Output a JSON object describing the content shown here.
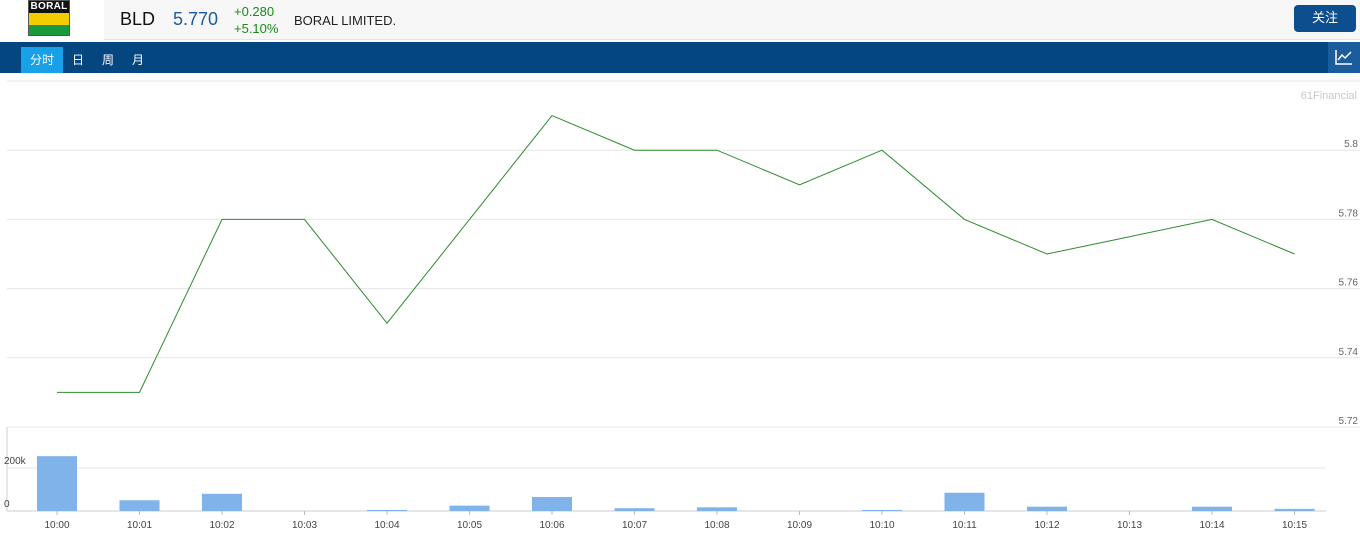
{
  "header": {
    "logo_text": "BORAL",
    "symbol": "BLD",
    "price": "5.770",
    "change": "+0.280",
    "change_pct": "+5.10%",
    "company": "BORAL LIMITED.",
    "follow_label": "关注"
  },
  "tabs": [
    {
      "label": "分时",
      "active": true
    },
    {
      "label": "日",
      "active": false
    },
    {
      "label": "周",
      "active": false
    },
    {
      "label": "月",
      "active": false
    }
  ],
  "icons": {
    "chart_toggle": "line-chart-icon"
  },
  "colors": {
    "price_line": "#2e8b2e",
    "volume_bar": "#7fb3ea",
    "accent": "#04467f",
    "up": "#1a8a1a"
  },
  "chart_data": [
    {
      "type": "line",
      "watermark": "61Financial",
      "x": [
        "10:00",
        "10:01",
        "10:02",
        "10:03",
        "10:04",
        "10:05",
        "10:06",
        "10:07",
        "10:08",
        "10:09",
        "10:10",
        "10:11",
        "10:12",
        "10:13",
        "10:14",
        "10:15"
      ],
      "values": [
        5.73,
        5.73,
        5.78,
        5.78,
        5.75,
        5.78,
        5.81,
        5.8,
        5.8,
        5.79,
        5.8,
        5.78,
        5.77,
        5.775,
        5.78,
        5.77
      ],
      "ylim": [
        5.72,
        5.82
      ],
      "yticks": [
        "5.8",
        "5.78",
        "5.76",
        "5.74",
        "5.72"
      ],
      "grid": true
    },
    {
      "type": "bar",
      "x": [
        "10:00",
        "10:01",
        "10:02",
        "10:03",
        "10:04",
        "10:05",
        "10:06",
        "10:07",
        "10:08",
        "10:09",
        "10:10",
        "10:11",
        "10:12",
        "10:13",
        "10:14",
        "10:15"
      ],
      "values": [
        255000,
        50000,
        80000,
        0,
        4000,
        25000,
        65000,
        13000,
        17000,
        0,
        3000,
        85000,
        20000,
        0,
        20000,
        10000
      ],
      "ylim": [
        0,
        400000
      ],
      "yticks": [
        "200k",
        "0"
      ],
      "grid": true
    }
  ]
}
